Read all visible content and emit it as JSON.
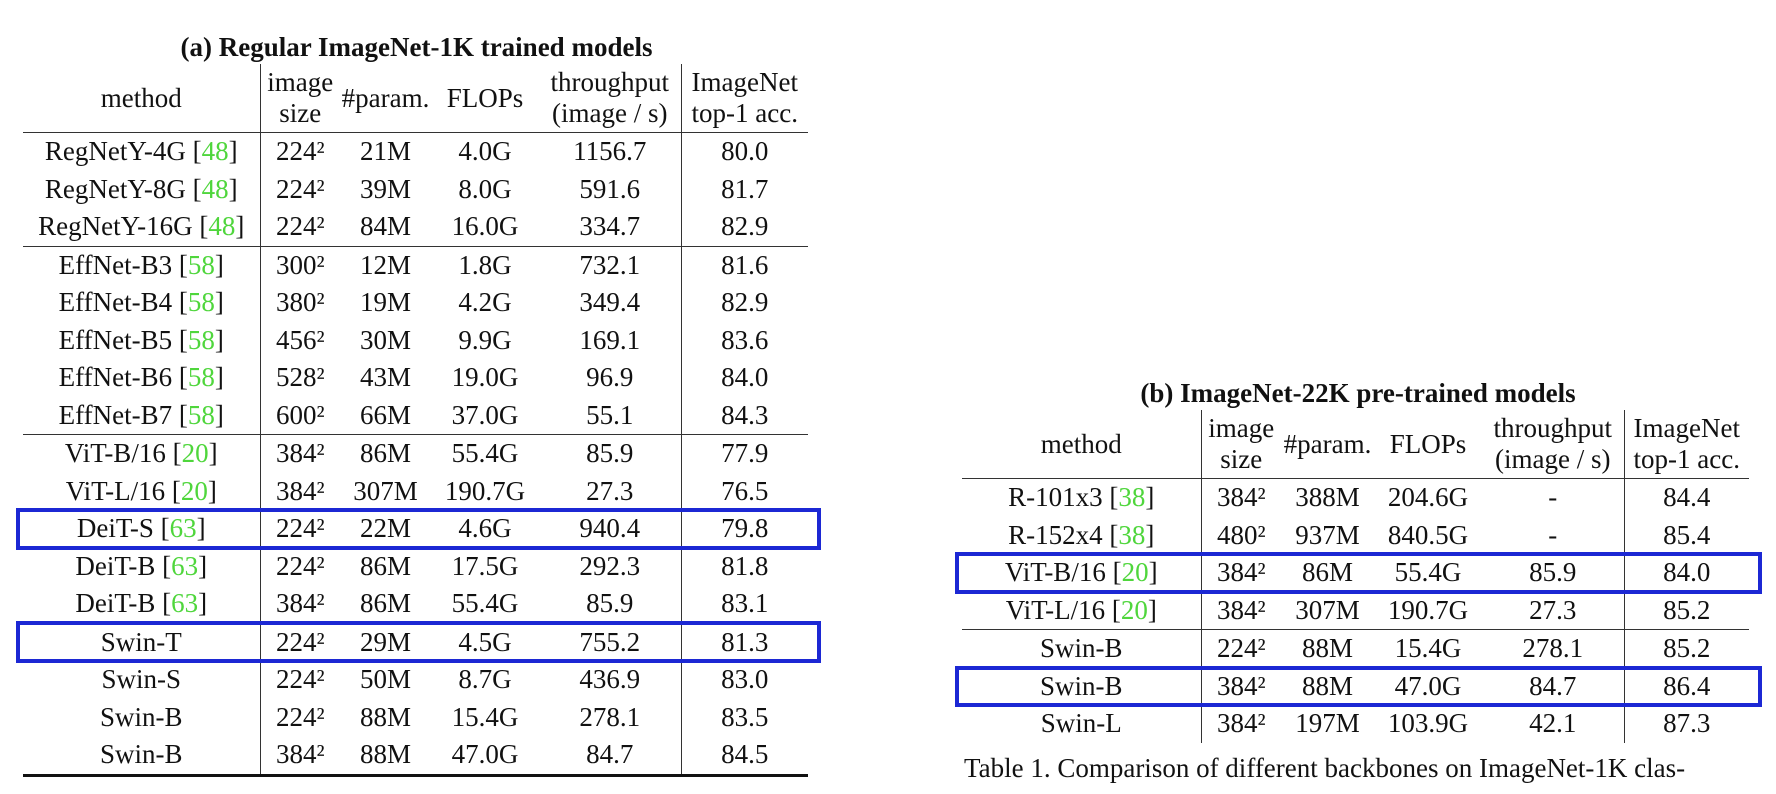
{
  "table_a": {
    "title": "(a) Regular ImageNet-1K trained models",
    "header": [
      [
        "method"
      ],
      [
        "image",
        "size"
      ],
      [
        "#param."
      ],
      [
        "FLOPs"
      ],
      [
        "throughput",
        "(image / s)"
      ],
      [
        "ImageNet",
        "top-1 acc."
      ]
    ],
    "groups": [
      [
        [
          "RegNetY-4G [48]",
          "224²",
          "21M",
          "4.0G",
          "1156.7",
          "80.0"
        ],
        [
          "RegNetY-8G [48]",
          "224²",
          "39M",
          "8.0G",
          "591.6",
          "81.7"
        ],
        [
          "RegNetY-16G [48]",
          "224²",
          "84M",
          "16.0G",
          "334.7",
          "82.9"
        ]
      ],
      [
        [
          "EffNet-B3 [58]",
          "300²",
          "12M",
          "1.8G",
          "732.1",
          "81.6"
        ],
        [
          "EffNet-B4 [58]",
          "380²",
          "19M",
          "4.2G",
          "349.4",
          "82.9"
        ],
        [
          "EffNet-B5 [58]",
          "456²",
          "30M",
          "9.9G",
          "169.1",
          "83.6"
        ],
        [
          "EffNet-B6 [58]",
          "528²",
          "43M",
          "19.0G",
          "96.9",
          "84.0"
        ],
        [
          "EffNet-B7 [58]",
          "600²",
          "66M",
          "37.0G",
          "55.1",
          "84.3"
        ]
      ],
      [
        [
          "ViT-B/16 [20]",
          "384²",
          "86M",
          "55.4G",
          "85.9",
          "77.9"
        ],
        [
          "ViT-L/16 [20]",
          "384²",
          "307M",
          "190.7G",
          "27.3",
          "76.5"
        ],
        [
          "DeiT-S [63]",
          "224²",
          "22M",
          "4.6G",
          "940.4",
          "79.8"
        ],
        [
          "DeiT-B [63]",
          "224²",
          "86M",
          "17.5G",
          "292.3",
          "81.8"
        ],
        [
          "DeiT-B [63]",
          "384²",
          "86M",
          "55.4G",
          "85.9",
          "83.1"
        ]
      ],
      [
        [
          "Swin-T",
          "224²",
          "29M",
          "4.5G",
          "755.2",
          "81.3"
        ],
        [
          "Swin-S",
          "224²",
          "50M",
          "8.7G",
          "436.9",
          "83.0"
        ],
        [
          "Swin-B",
          "224²",
          "88M",
          "15.4G",
          "278.1",
          "83.5"
        ],
        [
          "Swin-B",
          "384²",
          "88M",
          "47.0G",
          "84.7",
          "84.5"
        ]
      ]
    ],
    "boxed_rows": [
      [
        2,
        2
      ],
      [
        3,
        0
      ]
    ],
    "box_color": "#1c28d4",
    "ref_color": "#4fd63c"
  },
  "table_b": {
    "title": "(b) ImageNet-22K pre-trained models",
    "header": [
      [
        "method"
      ],
      [
        "image",
        "size"
      ],
      [
        "#param."
      ],
      [
        "FLOPs"
      ],
      [
        "throughput",
        "(image / s)"
      ],
      [
        "ImageNet",
        "top-1 acc."
      ]
    ],
    "groups": [
      [
        [
          "R-101x3 [38]",
          "384²",
          "388M",
          "204.6G",
          "-",
          "84.4"
        ],
        [
          "R-152x4 [38]",
          "480²",
          "937M",
          "840.5G",
          "-",
          "85.4"
        ],
        [
          "ViT-B/16 [20]",
          "384²",
          "86M",
          "55.4G",
          "85.9",
          "84.0"
        ],
        [
          "ViT-L/16 [20]",
          "384²",
          "307M",
          "190.7G",
          "27.3",
          "85.2"
        ]
      ],
      [
        [
          "Swin-B",
          "224²",
          "88M",
          "15.4G",
          "278.1",
          "85.2"
        ],
        [
          "Swin-B",
          "384²",
          "88M",
          "47.0G",
          "84.7",
          "86.4"
        ],
        [
          "Swin-L",
          "384²",
          "197M",
          "103.9G",
          "42.1",
          "87.3"
        ]
      ]
    ],
    "boxed_rows": [
      [
        0,
        2
      ],
      [
        1,
        1
      ]
    ],
    "box_color": "#1c28d4",
    "ref_color": "#4fd63c"
  },
  "caption": "Table 1. Comparison of different backbones on ImageNet-1K clas-"
}
